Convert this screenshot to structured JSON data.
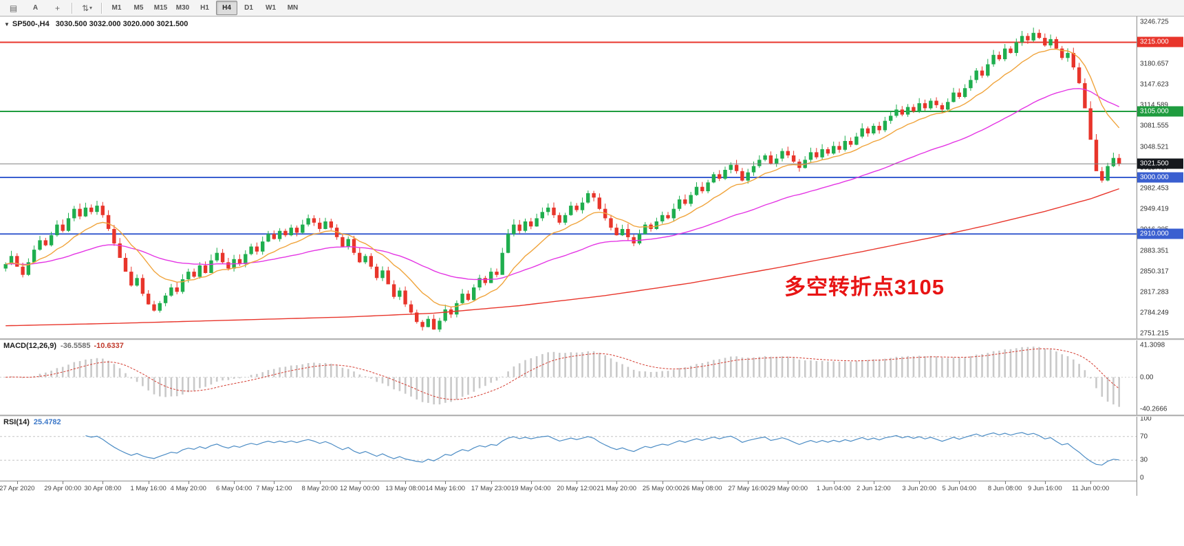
{
  "toolbar": {
    "icons": [
      {
        "name": "chart-grid-icon",
        "glyph": "▤"
      },
      {
        "name": "cursor-tool-icon",
        "glyph": "A"
      },
      {
        "name": "crosshair-tool-icon",
        "glyph": "+"
      },
      {
        "name": "objects-dropdown-icon",
        "glyph": "⇅"
      }
    ],
    "timeframes": [
      "M1",
      "M5",
      "M15",
      "M30",
      "H1",
      "H4",
      "D1",
      "W1",
      "MN"
    ],
    "active_timeframe": "H4"
  },
  "chart": {
    "symbol_period": "SP500-,H4",
    "ohlc": "3030.500 3032.000 3020.000 3021.500",
    "annotation": {
      "text": "多空转折点3105",
      "color": "#e81414"
    },
    "price_axis": {
      "labels": [
        "3246.725",
        "3213.691",
        "3180.657",
        "3147.623",
        "3114.589",
        "3081.555",
        "3048.521",
        "3015.487",
        "2982.453",
        "2949.419",
        "2916.385",
        "2883.351",
        "2850.317",
        "2817.283",
        "2784.249",
        "2751.215"
      ]
    },
    "hlines": [
      {
        "price": 3215.0,
        "label": "3215.000",
        "color": "#e8352b",
        "badge": "#e8352b",
        "current": false
      },
      {
        "price": 3105.0,
        "label": "3105.000",
        "color": "#1f9c3f",
        "badge": "#1f9c3f",
        "current": false
      },
      {
        "price": 3000.0,
        "label": "3000.000",
        "color": "#3a5fd0",
        "badge": "#3a5fd0",
        "current": false
      },
      {
        "price": 2910.0,
        "label": "2910.000",
        "color": "#3a5fd0",
        "badge": "#3a5fd0",
        "current": false
      },
      {
        "price": 3021.5,
        "label": "3021.500",
        "color": "#808080",
        "badge": "#15181d",
        "current": true
      }
    ],
    "colors": {
      "up": "#1fae4e",
      "down": "#e8352b",
      "ma_fast": "#f0a43c",
      "ma_mid": "#e435e4",
      "ma_slow": "#e8352b",
      "macd_bar": "#c9c9c9",
      "macd_signal": "#d43c30",
      "rsi_line": "#4a8bc4"
    },
    "first_open": 2855,
    "closes": [
      2862,
      2875,
      2858,
      2845,
      2865,
      2885,
      2900,
      2892,
      2908,
      2925,
      2915,
      2935,
      2950,
      2938,
      2952,
      2945,
      2955,
      2940,
      2918,
      2895,
      2872,
      2850,
      2828,
      2840,
      2815,
      2798,
      2788,
      2800,
      2812,
      2825,
      2818,
      2838,
      2850,
      2842,
      2860,
      2848,
      2868,
      2880,
      2865,
      2855,
      2870,
      2862,
      2878,
      2890,
      2882,
      2898,
      2910,
      2902,
      2915,
      2908,
      2920,
      2912,
      2925,
      2935,
      2928,
      2918,
      2930,
      2920,
      2905,
      2890,
      2902,
      2880,
      2865,
      2875,
      2858,
      2840,
      2852,
      2830,
      2810,
      2820,
      2798,
      2785,
      2770,
      2762,
      2775,
      2758,
      2772,
      2790,
      2782,
      2800,
      2815,
      2805,
      2825,
      2840,
      2832,
      2850,
      2845,
      2880,
      2910,
      2925,
      2915,
      2930,
      2922,
      2935,
      2945,
      2952,
      2940,
      2928,
      2940,
      2955,
      2948,
      2960,
      2975,
      2968,
      2950,
      2935,
      2920,
      2908,
      2918,
      2905,
      2895,
      2910,
      2925,
      2918,
      2930,
      2940,
      2935,
      2950,
      2965,
      2958,
      2972,
      2985,
      2978,
      2992,
      3005,
      2998,
      3012,
      3020,
      3010,
      2995,
      3008,
      3018,
      3028,
      3035,
      3022,
      3030,
      3042,
      3035,
      3025,
      3015,
      3028,
      3040,
      3032,
      3045,
      3038,
      3050,
      3044,
      3058,
      3052,
      3065,
      3078,
      3070,
      3082,
      3075,
      3090,
      3098,
      3108,
      3100,
      3112,
      3105,
      3118,
      3110,
      3122,
      3115,
      3108,
      3120,
      3135,
      3128,
      3142,
      3155,
      3170,
      3162,
      3180,
      3195,
      3188,
      3205,
      3198,
      3215,
      3225,
      3218,
      3230,
      3222,
      3210,
      3220,
      3205,
      3190,
      3198,
      3175,
      3150,
      3110,
      3060,
      3010,
      2995,
      3018,
      3031,
      3021.5
    ],
    "red_ma": [
      [
        0,
        2764
      ],
      [
        20,
        2768
      ],
      [
        40,
        2773
      ],
      [
        60,
        2778
      ],
      [
        75,
        2784
      ],
      [
        90,
        2796
      ],
      [
        105,
        2812
      ],
      [
        120,
        2832
      ],
      [
        135,
        2856
      ],
      [
        150,
        2882
      ],
      [
        162,
        2904
      ],
      [
        172,
        2924
      ],
      [
        182,
        2946
      ],
      [
        190,
        2966
      ],
      [
        195,
        2982
      ]
    ],
    "time_labels": [
      {
        "i": 2,
        "t": "27 Apr 2020"
      },
      {
        "i": 10,
        "t": "29 Apr 00:00"
      },
      {
        "i": 17,
        "t": "30 Apr 08:00"
      },
      {
        "i": 25,
        "t": "1 May 16:00"
      },
      {
        "i": 32,
        "t": "4 May 20:00"
      },
      {
        "i": 40,
        "t": "6 May 04:00"
      },
      {
        "i": 47,
        "t": "7 May 12:00"
      },
      {
        "i": 55,
        "t": "8 May 20:00"
      },
      {
        "i": 62,
        "t": "12 May 00:00"
      },
      {
        "i": 70,
        "t": "13 May 08:00"
      },
      {
        "i": 77,
        "t": "14 May 16:00"
      },
      {
        "i": 85,
        "t": "17 May 23:00"
      },
      {
        "i": 92,
        "t": "19 May 04:00"
      },
      {
        "i": 100,
        "t": "20 May 12:00"
      },
      {
        "i": 107,
        "t": "21 May 20:00"
      },
      {
        "i": 115,
        "t": "25 May 00:00"
      },
      {
        "i": 122,
        "t": "26 May 08:00"
      },
      {
        "i": 130,
        "t": "27 May 16:00"
      },
      {
        "i": 137,
        "t": "29 May 00:00"
      },
      {
        "i": 145,
        "t": "1 Jun 04:00"
      },
      {
        "i": 152,
        "t": "2 Jun 12:00"
      },
      {
        "i": 160,
        "t": "3 Jun 20:00"
      },
      {
        "i": 167,
        "t": "5 Jun 04:00"
      },
      {
        "i": 175,
        "t": "8 Jun 08:00"
      },
      {
        "i": 182,
        "t": "9 Jun 16:00"
      },
      {
        "i": 190,
        "t": "11 Jun 00:00"
      }
    ]
  },
  "macd": {
    "name": "MACD(12,26,9)",
    "value_main": "-36.5585",
    "value_signal": "-10.6337",
    "axis": [
      "41.3098",
      "0.00",
      "-40.2666"
    ],
    "fast": 12,
    "slow": 26,
    "signal": 9
  },
  "rsi": {
    "name": "RSI(14)",
    "value": "25.4782",
    "axis": [
      "100",
      "70",
      "30",
      "0"
    ],
    "axis_values": [
      100,
      70,
      30,
      0
    ],
    "period": 14,
    "levels": [
      70,
      30
    ]
  }
}
